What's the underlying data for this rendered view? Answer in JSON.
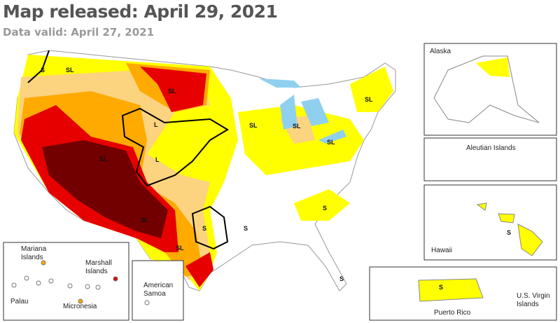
{
  "header": {
    "title": "Map released: April 29, 2021",
    "subtitle": "Data valid: April 27, 2021"
  },
  "insets": [
    {
      "label": "Alaska"
    },
    {
      "label": "Aleutian Islands"
    },
    {
      "label": "Hawaii"
    },
    {
      "label": "Puerto Rico"
    },
    {
      "label": "U.S. Virgin Islands"
    },
    {
      "label": "Mariana Islands"
    },
    {
      "label": "Marshall Islands"
    },
    {
      "label": "Palau"
    },
    {
      "label": "Micronesia"
    },
    {
      "label": "American Samoa"
    }
  ],
  "impact_labels": [
    "S",
    "SL",
    "SL",
    "SL",
    "L",
    "L",
    "SL",
    "S",
    "SL",
    "S",
    "SL",
    "SL",
    "SL",
    "SL",
    "S",
    "S",
    "S",
    "S"
  ]
}
